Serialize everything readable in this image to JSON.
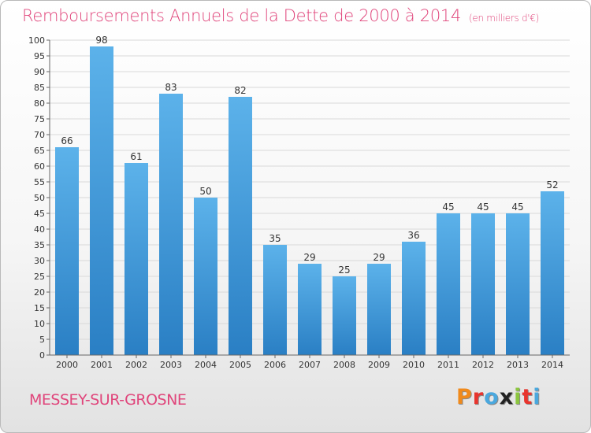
{
  "title": {
    "main": "Remboursements Annuels de la Dette de 2000 à 2014",
    "unit": "(en milliers d'€)"
  },
  "commune": "MESSEY-SUR-GROSNE",
  "logo": {
    "text": "Proxiti",
    "letters": [
      "P",
      "r",
      "o",
      "x",
      "i",
      "t",
      "i"
    ],
    "colors": [
      "#f08a1c",
      "#e8352e",
      "#4aa8de",
      "#222222",
      "#8cc63f",
      "#e8352e",
      "#4aa8de"
    ]
  },
  "chart_data": {
    "type": "bar",
    "title": "Remboursements Annuels de la Dette de 2000 à 2014",
    "xlabel": "",
    "ylabel": "",
    "categories": [
      "2000",
      "2001",
      "2002",
      "2003",
      "2004",
      "2005",
      "2006",
      "2007",
      "2008",
      "2009",
      "2010",
      "2011",
      "2012",
      "2013",
      "2014"
    ],
    "values": [
      66,
      98,
      61,
      83,
      50,
      82,
      35,
      29,
      25,
      29,
      36,
      45,
      45,
      45,
      52
    ],
    "ylim": [
      0,
      100
    ],
    "ytick_step": 5,
    "grid": true,
    "legend": "none",
    "colors": {
      "bar_top": "#5cb2ea",
      "bar_bottom": "#2a7fc4",
      "grid": "#d9d9d9"
    }
  }
}
